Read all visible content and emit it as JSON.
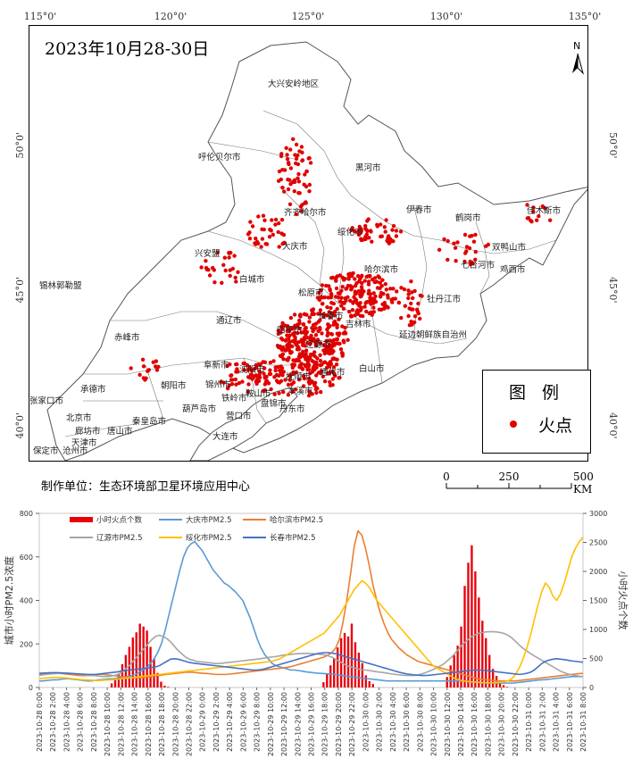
{
  "map": {
    "title": "2023年10月28-30日",
    "producer": "制作单位：生态环境部卫星环境应用中心",
    "longitude_labels": [
      "115°0'",
      "120°0'",
      "125°0'",
      "130°0'",
      "135°0'"
    ],
    "latitude_labels": [
      "50°0'",
      "45°0'",
      "40°0'"
    ],
    "north_label": "N",
    "legend": {
      "title": "图 例",
      "item": "火点",
      "dot_color": "#e00000"
    },
    "scale": {
      "labels": [
        "0",
        "250",
        "500 KM"
      ]
    },
    "cities": [
      "大兴安岭地区",
      "呼伦贝尔市",
      "黑河市",
      "齐齐哈尔市",
      "伊春市",
      "鹤岗市",
      "佳木斯市",
      "大庆市",
      "绥化市",
      "双鸭山市",
      "七台河市",
      "鸡西市",
      "兴安盟",
      "白城市",
      "哈尔滨市",
      "松原市",
      "牡丹江市",
      "锡林郭勒盟",
      "通辽市",
      "吉林市",
      "延边朝鲜族自治州",
      "赤峰市",
      "四平市",
      "辽源市",
      "白山市",
      "阜新市",
      "沈阳市",
      "抚顺市",
      "通化市",
      "朝阳市",
      "锦州市",
      "本溪市",
      "承德市",
      "张家口市",
      "葫芦岛市",
      "鞍山市",
      "丹东市",
      "北京市",
      "秦皇岛市",
      "营口市",
      "唐山市",
      "廊坊市",
      "天津市",
      "大连市",
      "保定市",
      "沧州市",
      "长春市",
      "铁岭市",
      "盘锦市"
    ]
  },
  "chart_data": {
    "type": "bar+line",
    "x_labels": [
      "2023-10-28 0:00",
      "2023-10-28 2:00",
      "2023-10-28 4:00",
      "2023-10-28 6:00",
      "2023-10-28 8:00",
      "2023-10-28 10:00",
      "2023-10-28 12:00",
      "2023-10-28 14:00",
      "2023-10-28 16:00",
      "2023-10-28 18:00",
      "2023-10-28 20:00",
      "2023-10-28 22:00",
      "2023-10-29 0:00",
      "2023-10-29 2:00",
      "2023-10-29 4:00",
      "2023-10-29 6:00",
      "2023-10-29 8:00",
      "2023-10-29 10:00",
      "2023-10-29 12:00",
      "2023-10-29 14:00",
      "2023-10-29 16:00",
      "2023-10-29 18:00",
      "2023-10-29 20:00",
      "2023-10-29 22:00",
      "2023-10-30 0:00",
      "2023-10-30 2:00",
      "2023-10-30 4:00",
      "2023-10-30 6:00",
      "2023-10-30 8:00",
      "2023-10-30 10:00",
      "2023-10-30 12:00",
      "2023-10-30 14:00",
      "2023-10-30 16:00",
      "2023-10-30 18:00",
      "2023-10-30 20:00",
      "2023-10-30 22:00",
      "2023-10-31 0:00",
      "2023-10-31 2:00",
      "2023-10-31 4:00",
      "2023-10-31 6:00",
      "2023-10-31 8:00"
    ],
    "y_left": {
      "label": "城市小时PM2.5浓度",
      "min": 0,
      "max": 800,
      "ticks": [
        0,
        200,
        400,
        600,
        800
      ]
    },
    "y_right": {
      "label": "小时火点个数",
      "min": 0,
      "max": 3000,
      "ticks": [
        0,
        500,
        1000,
        1500,
        2000,
        2500,
        3000
      ]
    },
    "bars": {
      "name": "小时火点个数",
      "color": "#e8000b",
      "values": [
        0,
        0,
        0,
        0,
        0,
        0,
        0,
        0,
        0,
        0,
        0,
        0,
        0,
        0,
        0,
        0,
        0,
        0,
        0,
        0,
        70,
        150,
        240,
        400,
        560,
        700,
        860,
        950,
        1100,
        1050,
        980,
        700,
        500,
        250,
        100,
        30,
        10,
        0,
        0,
        0,
        0,
        0,
        0,
        0,
        0,
        0,
        0,
        0,
        0,
        0,
        0,
        0,
        0,
        0,
        0,
        0,
        0,
        0,
        0,
        0,
        0,
        0,
        0,
        0,
        0,
        0,
        0,
        0,
        0,
        0,
        0,
        0,
        0,
        0,
        0,
        0,
        0,
        0,
        0,
        0,
        90,
        230,
        380,
        500,
        690,
        850,
        940,
        880,
        1100,
        780,
        600,
        420,
        210,
        110,
        60,
        0,
        0,
        0,
        0,
        0,
        0,
        0,
        0,
        0,
        0,
        0,
        0,
        0,
        0,
        0,
        0,
        0,
        0,
        0,
        0,
        180,
        380,
        560,
        720,
        1050,
        1750,
        2150,
        2450,
        2000,
        1550,
        1150,
        850,
        560,
        320,
        200,
        90,
        40,
        10,
        0,
        0,
        0,
        0,
        0,
        0,
        0,
        0,
        0,
        0,
        0,
        0,
        0,
        0,
        0,
        0,
        0,
        0,
        0,
        0,
        0
      ]
    },
    "series": [
      {
        "name": "大庆市PM2.5",
        "color": "#5b9bd5",
        "values": [
          30,
          30,
          32,
          34,
          35,
          35,
          38,
          40,
          40,
          38,
          36,
          34,
          32,
          30,
          30,
          32,
          35,
          36,
          38,
          40,
          40,
          42,
          45,
          48,
          50,
          55,
          60,
          70,
          80,
          90,
          110,
          130,
          160,
          200,
          260,
          330,
          400,
          470,
          540,
          600,
          640,
          660,
          670,
          650,
          630,
          600,
          570,
          540,
          520,
          500,
          480,
          470,
          455,
          440,
          420,
          400,
          360,
          320,
          270,
          220,
          180,
          150,
          130,
          110,
          100,
          95,
          90,
          85,
          80,
          80,
          78,
          75,
          72,
          70,
          68,
          66,
          65,
          64,
          63,
          62,
          60,
          58,
          55,
          52,
          50,
          48,
          46,
          44,
          42,
          40,
          38,
          36,
          34,
          32,
          30,
          30,
          30,
          30,
          30,
          30,
          30,
          30,
          30,
          30,
          30,
          30,
          30,
          30,
          30,
          30,
          30,
          30,
          30,
          30,
          30,
          30,
          28,
          26,
          24,
          22,
          20,
          20,
          20,
          20,
          20,
          20,
          20,
          20,
          20,
          22,
          24,
          26,
          28,
          30,
          32,
          34,
          35,
          36,
          38,
          40,
          42,
          44,
          46,
          48,
          50,
          50,
          50,
          50
        ]
      },
      {
        "name": "哈尔滨市PM2.5",
        "color": "#ed7d31",
        "values": [
          60,
          62,
          64,
          65,
          66,
          65,
          64,
          62,
          60,
          58,
          56,
          55,
          54,
          55,
          56,
          58,
          60,
          60,
          58,
          56,
          54,
          52,
          50,
          48,
          46,
          45,
          44,
          45,
          46,
          48,
          50,
          52,
          55,
          58,
          60,
          62,
          64,
          66,
          68,
          70,
          70,
          70,
          68,
          66,
          65,
          64,
          62,
          60,
          60,
          60,
          60,
          62,
          64,
          66,
          68,
          70,
          72,
          74,
          76,
          78,
          80,
          82,
          84,
          86,
          88,
          90,
          92,
          95,
          100,
          105,
          110,
          115,
          120,
          125,
          130,
          135,
          140,
          150,
          160,
          180,
          220,
          300,
          400,
          520,
          650,
          720,
          700,
          640,
          560,
          470,
          400,
          340,
          290,
          250,
          220,
          200,
          180,
          165,
          150,
          140,
          130,
          120,
          115,
          110,
          105,
          100,
          95,
          90,
          85,
          80,
          75,
          70,
          65,
          60,
          55,
          50,
          45,
          40,
          38,
          36,
          34,
          32,
          30,
          30,
          30,
          30,
          30,
          30,
          32,
          34,
          36,
          38,
          40,
          42,
          44,
          46,
          48,
          50,
          52,
          54,
          56,
          58,
          60,
          62,
          64,
          65
        ]
      },
      {
        "name": "辽源市PM2.5",
        "color": "#a5a5a5",
        "values": [
          55,
          58,
          60,
          62,
          64,
          65,
          66,
          66,
          65,
          64,
          62,
          60,
          58,
          56,
          55,
          54,
          52,
          50,
          50,
          52,
          55,
          60,
          70,
          85,
          100,
          120,
          140,
          160,
          180,
          200,
          220,
          235,
          240,
          235,
          225,
          210,
          190,
          170,
          155,
          140,
          130,
          125,
          120,
          118,
          116,
          114,
          112,
          110,
          110,
          112,
          114,
          116,
          118,
          120,
          122,
          124,
          126,
          128,
          130,
          132,
          135,
          138,
          140,
          142,
          145,
          148,
          150,
          152,
          154,
          155,
          156,
          156,
          156,
          155,
          154,
          152,
          150,
          145,
          140,
          130,
          120,
          110,
          100,
          95,
          90,
          85,
          82,
          80,
          78,
          75,
          72,
          70,
          68,
          65,
          62,
          60,
          58,
          56,
          55,
          55,
          55,
          58,
          62,
          68,
          75,
          82,
          90,
          100,
          110,
          125,
          140,
          160,
          180,
          200,
          215,
          230,
          240,
          248,
          252,
          255,
          256,
          256,
          255,
          252,
          248,
          240,
          228,
          212,
          195,
          180,
          168,
          156,
          145,
          135,
          125,
          115,
          105,
          95,
          85,
          75,
          68,
          62,
          58,
          55,
          52,
          50
        ]
      },
      {
        "name": "绥化市PM2.5",
        "color": "#ffc000",
        "values": [
          40,
          42,
          44,
          45,
          46,
          46,
          45,
          44,
          42,
          40,
          38,
          36,
          35,
          34,
          33,
          32,
          32,
          33,
          34,
          35,
          36,
          38,
          40,
          42,
          44,
          46,
          48,
          50,
          52,
          54,
          56,
          58,
          60,
          62,
          64,
          66,
          68,
          70,
          72,
          74,
          76,
          78,
          80,
          82,
          84,
          86,
          88,
          90,
          92,
          94,
          96,
          98,
          100,
          102,
          104,
          106,
          108,
          110,
          112,
          114,
          116,
          118,
          120,
          125,
          130,
          140,
          150,
          160,
          170,
          180,
          190,
          200,
          210,
          220,
          230,
          240,
          250,
          270,
          290,
          310,
          330,
          360,
          390,
          420,
          450,
          470,
          490,
          480,
          460,
          430,
          400,
          380,
          360,
          340,
          320,
          300,
          280,
          260,
          240,
          220,
          200,
          180,
          160,
          140,
          120,
          100,
          90,
          80,
          70,
          60,
          50,
          40,
          35,
          30,
          28,
          26,
          25,
          24,
          23,
          22,
          22,
          22,
          23,
          24,
          26,
          30,
          40,
          60,
          90,
          130,
          180,
          240,
          310,
          380,
          440,
          480,
          460,
          420,
          400,
          430,
          480,
          540,
          600,
          640,
          670,
          690
        ]
      },
      {
        "name": "长春市PM2.5",
        "color": "#4472c4",
        "values": [
          65,
          66,
          67,
          68,
          68,
          68,
          67,
          66,
          65,
          64,
          63,
          62,
          61,
          60,
          60,
          60,
          62,
          64,
          66,
          68,
          70,
          72,
          75,
          78,
          80,
          82,
          84,
          86,
          88,
          90,
          92,
          95,
          100,
          110,
          120,
          130,
          132,
          130,
          125,
          120,
          115,
          112,
          110,
          108,
          106,
          104,
          102,
          100,
          98,
          96,
          94,
          92,
          90,
          88,
          86,
          84,
          82,
          80,
          80,
          82,
          85,
          90,
          95,
          100,
          105,
          110,
          115,
          120,
          125,
          130,
          135,
          140,
          145,
          150,
          155,
          158,
          160,
          160,
          158,
          155,
          150,
          145,
          140,
          135,
          130,
          125,
          120,
          115,
          110,
          105,
          100,
          95,
          90,
          85,
          80,
          75,
          70,
          66,
          62,
          60,
          58,
          56,
          55,
          55,
          56,
          58,
          60,
          62,
          64,
          66,
          68,
          70,
          72,
          74,
          76,
          78,
          80,
          80,
          80,
          78,
          76,
          74,
          72,
          70,
          68,
          66,
          64,
          62,
          60,
          62,
          65,
          70,
          80,
          95,
          110,
          120,
          126,
          130,
          132,
          130,
          128,
          125,
          122,
          120,
          118,
          116
        ]
      }
    ]
  }
}
